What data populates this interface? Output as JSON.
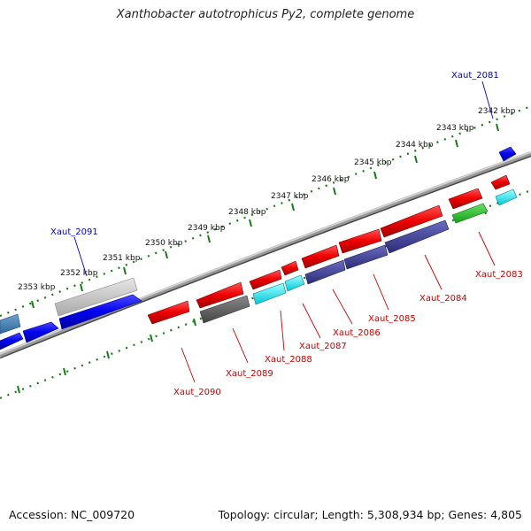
{
  "title": "Xanthobacter autotrophicus Py2, complete genome",
  "footer": {
    "accession": "Accession: NC_009720",
    "summary": "Topology: circular; Length: 5,308,934 bp; Genes: 4,805"
  },
  "ruler_ticks": [
    "2342 kbp",
    "2343 kbp",
    "2344 kbp",
    "2345 kbp",
    "2346 kbp",
    "2347 kbp",
    "2348 kbp",
    "2349 kbp",
    "2350 kbp",
    "2351 kbp",
    "2352 kbp",
    "2353 kbp"
  ],
  "gene_labels": {
    "forward": [
      "Xaut_2081",
      "Xaut_2091"
    ],
    "reverse": [
      "Xaut_2083",
      "Xaut_2084",
      "Xaut_2085",
      "Xaut_2086",
      "Xaut_2087",
      "Xaut_2088",
      "Xaut_2089",
      "Xaut_2090"
    ]
  },
  "colors": {
    "forward_label": "#0000cc",
    "reverse_label": "#cc0000",
    "tick": "#1a7a1a",
    "backbone": "#808080"
  }
}
